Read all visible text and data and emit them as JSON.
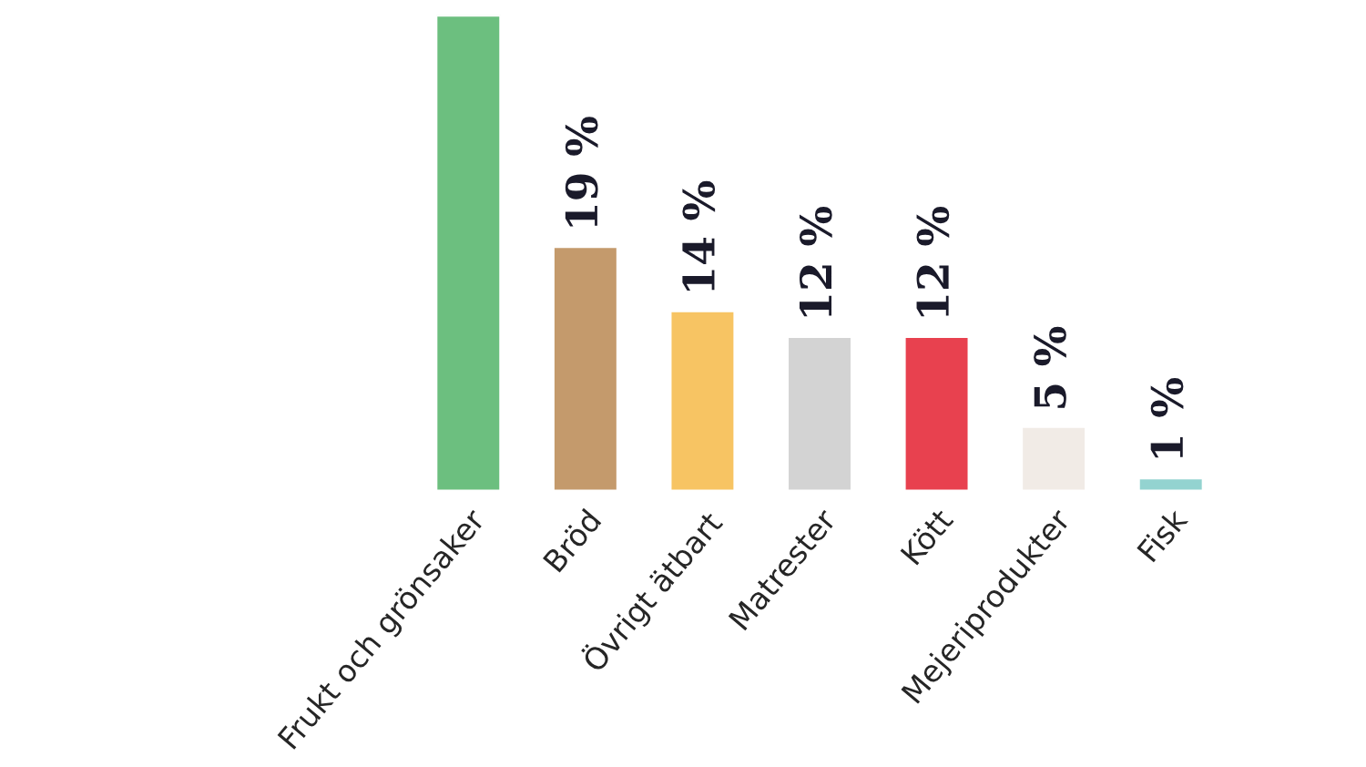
{
  "chart_data": {
    "type": "bar",
    "categories": [
      "Frukt och grönsaker",
      "Bröd",
      "Övrigt ätbart",
      "Matrester",
      "Kött",
      "Mejeriprodukter",
      "Fisk"
    ],
    "values": [
      37,
      19,
      14,
      12,
      12,
      5,
      1
    ],
    "colors": [
      "#6cbf7f",
      "#c49a6c",
      "#f7c463",
      "#d3d3d3",
      "#e8414f",
      "#f1ebe6",
      "#93d3d0"
    ],
    "value_labels": [
      null,
      "19 %",
      "14 %",
      "12 %",
      "12 %",
      "5 %",
      "1 %"
    ],
    "ylim": [
      0,
      37
    ],
    "tick_labels": "x",
    "grid": false,
    "legend": false
  }
}
